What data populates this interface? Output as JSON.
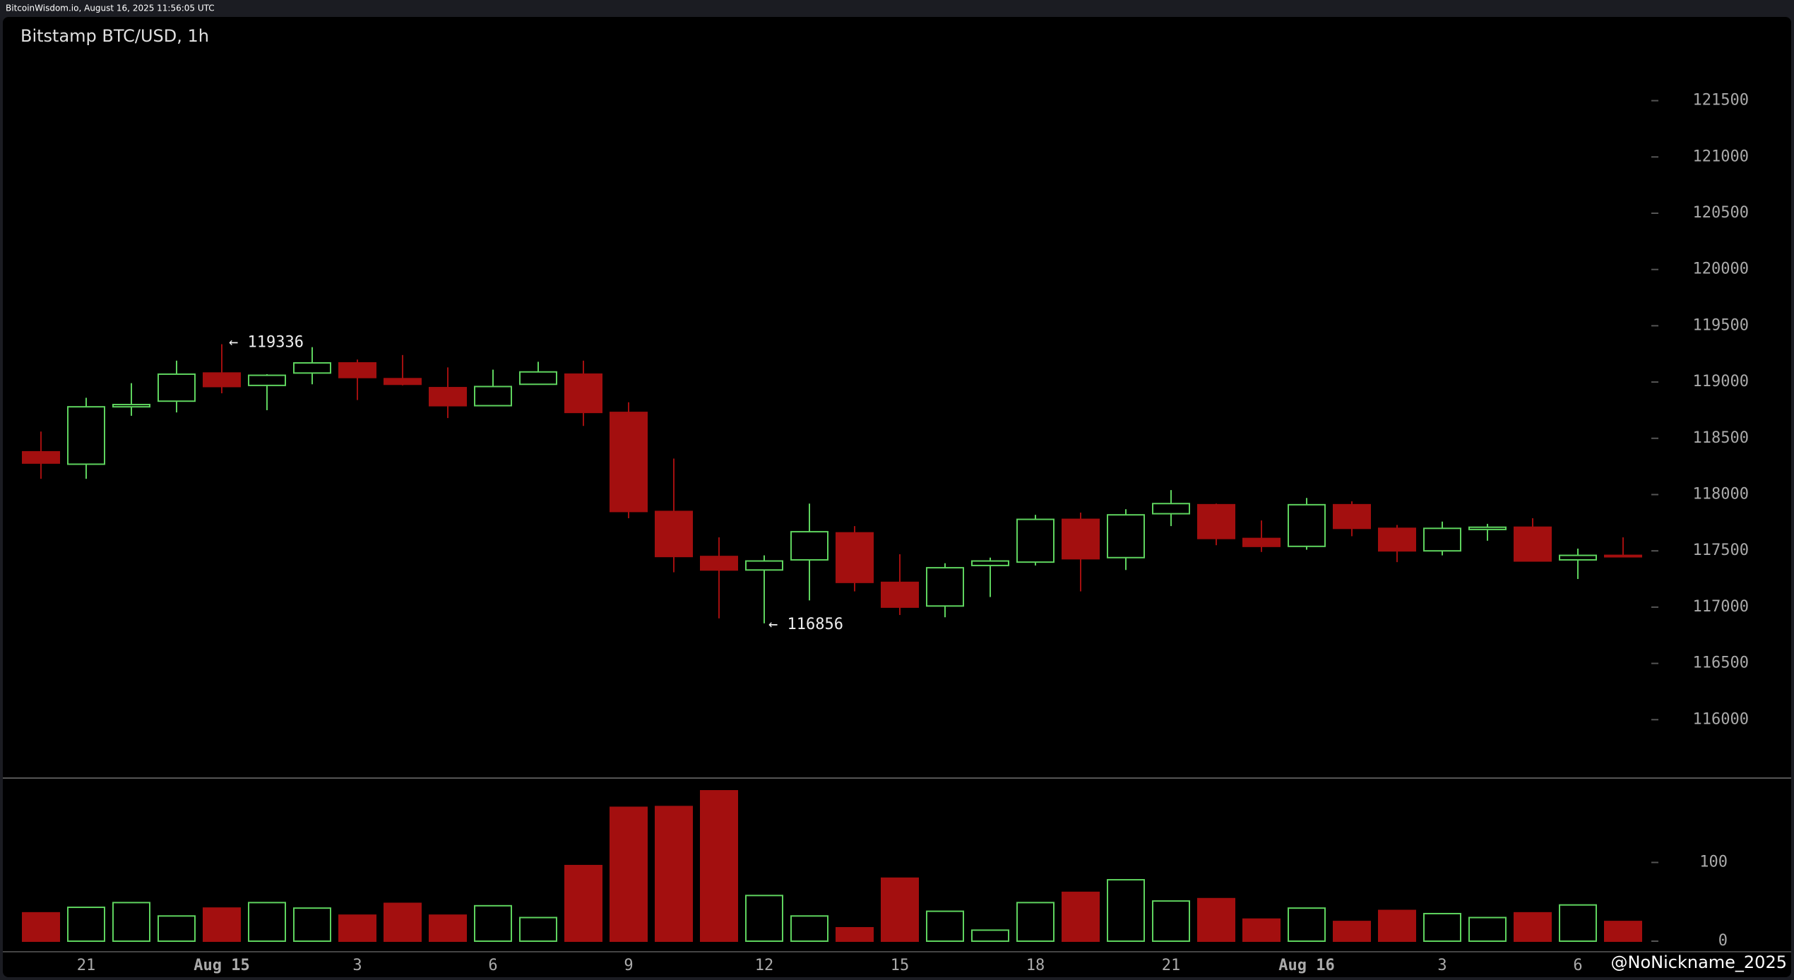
{
  "header": "BitcoinWisdom.io, August 16, 2025 11:56:05 UTC",
  "watermark": "@NoNickname_2025",
  "chart_data": {
    "type": "candlestick",
    "title": "Bitstamp BTC/USD, 1h",
    "categories": [
      null,
      "21",
      null,
      null,
      "Aug 15",
      null,
      null,
      "3",
      null,
      null,
      "6",
      null,
      null,
      "9",
      null,
      null,
      "12",
      null,
      null,
      "15",
      null,
      null,
      "18",
      null,
      null,
      "21",
      null,
      null,
      "Aug 16",
      null,
      null,
      "3",
      null,
      null,
      "6",
      null
    ],
    "open": [
      118380,
      118270,
      118780,
      118830,
      119080,
      118970,
      119080,
      119170,
      119030,
      118950,
      118790,
      118980,
      119070,
      118730,
      117850,
      117450,
      117330,
      117420,
      117660,
      117220,
      117010,
      117370,
      117400,
      117780,
      117440,
      117830,
      117910,
      117610,
      117540,
      117910,
      117700,
      117500,
      117690,
      117710,
      117420,
      117460
    ],
    "high": [
      118560,
      118860,
      118990,
      119190,
      119336,
      119070,
      119310,
      119200,
      119240,
      119130,
      119110,
      119180,
      119190,
      118820,
      118320,
      117620,
      117460,
      117920,
      117720,
      117470,
      117390,
      117440,
      117820,
      117840,
      117870,
      118040,
      117920,
      117770,
      117970,
      117940,
      117730,
      117760,
      117740,
      117790,
      117520,
      117620
    ],
    "low": [
      118140,
      118140,
      118700,
      118730,
      118900,
      118750,
      118980,
      118840,
      118970,
      118680,
      118790,
      118980,
      118610,
      117790,
      117310,
      116900,
      116856,
      117060,
      117140,
      116930,
      116910,
      117090,
      117370,
      117140,
      117330,
      117720,
      117550,
      117490,
      117510,
      117630,
      117400,
      117460,
      117590,
      117410,
      117250,
      117450
    ],
    "close": [
      118280,
      118780,
      118800,
      119070,
      118960,
      119060,
      119170,
      119040,
      118980,
      118790,
      118960,
      119090,
      118730,
      117850,
      117450,
      117330,
      117410,
      117670,
      117220,
      117000,
      117350,
      117410,
      117780,
      117430,
      117820,
      117920,
      117610,
      117540,
      117910,
      117700,
      117500,
      117700,
      117710,
      117410,
      117460,
      117450
    ],
    "volume": [
      36,
      43,
      49,
      32,
      42,
      49,
      42,
      33,
      48,
      33,
      45,
      30,
      96,
      170,
      171,
      191,
      58,
      32,
      17,
      80,
      38,
      14,
      49,
      62,
      78,
      51,
      54,
      28,
      42,
      25,
      39,
      35,
      30,
      36,
      46,
      25
    ],
    "up_color": "#5ed35e",
    "down_color": "#a30f0f",
    "ylim": [
      115500,
      122200
    ],
    "yticks": [
      116000,
      116500,
      117000,
      117500,
      118000,
      118500,
      119000,
      119500,
      120000,
      120500,
      121000,
      121500
    ],
    "volume_ylim": [
      0,
      200
    ],
    "volume_yticks": [
      0,
      100
    ],
    "annotations": [
      "← 119336",
      "← 116856"
    ]
  }
}
